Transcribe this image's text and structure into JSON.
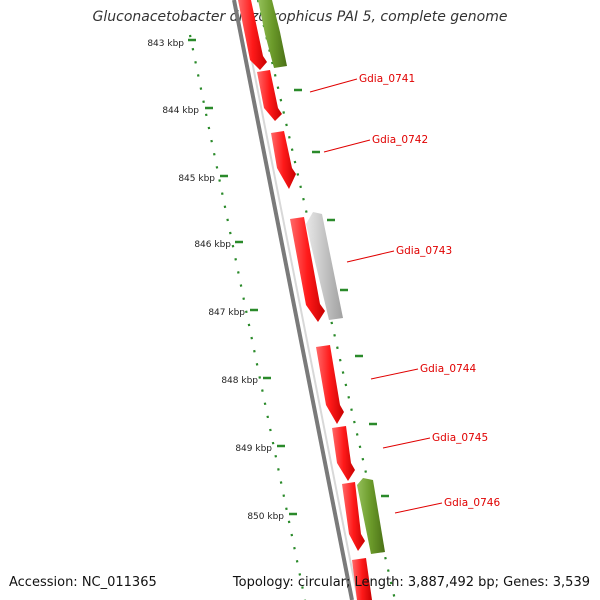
{
  "title": "Gluconacetobacter diazotrophicus PAI 5, complete genome",
  "footer": {
    "accession": "Accession: NC_011365",
    "summary": "Topology: circular; Length: 3,887,492 bp; Genes: 3,539"
  },
  "colors": {
    "gene_red": "#ff1a1a",
    "gene_green": "#6b9a2a",
    "gene_grey": "#bdbdbd",
    "tick_green": "#2a8a2a",
    "backbone": "#7a7a7a",
    "label_red": "#e00000"
  },
  "scale_labels": [
    "843 kbp",
    "844 kbp",
    "845 kbp",
    "846 kbp",
    "847 kbp",
    "848 kbp",
    "849 kbp",
    "850 kbp"
  ],
  "gene_labels": [
    "Gdia_0741",
    "Gdia_0742",
    "Gdia_0743",
    "Gdia_0744",
    "Gdia_0745",
    "Gdia_0746"
  ]
}
